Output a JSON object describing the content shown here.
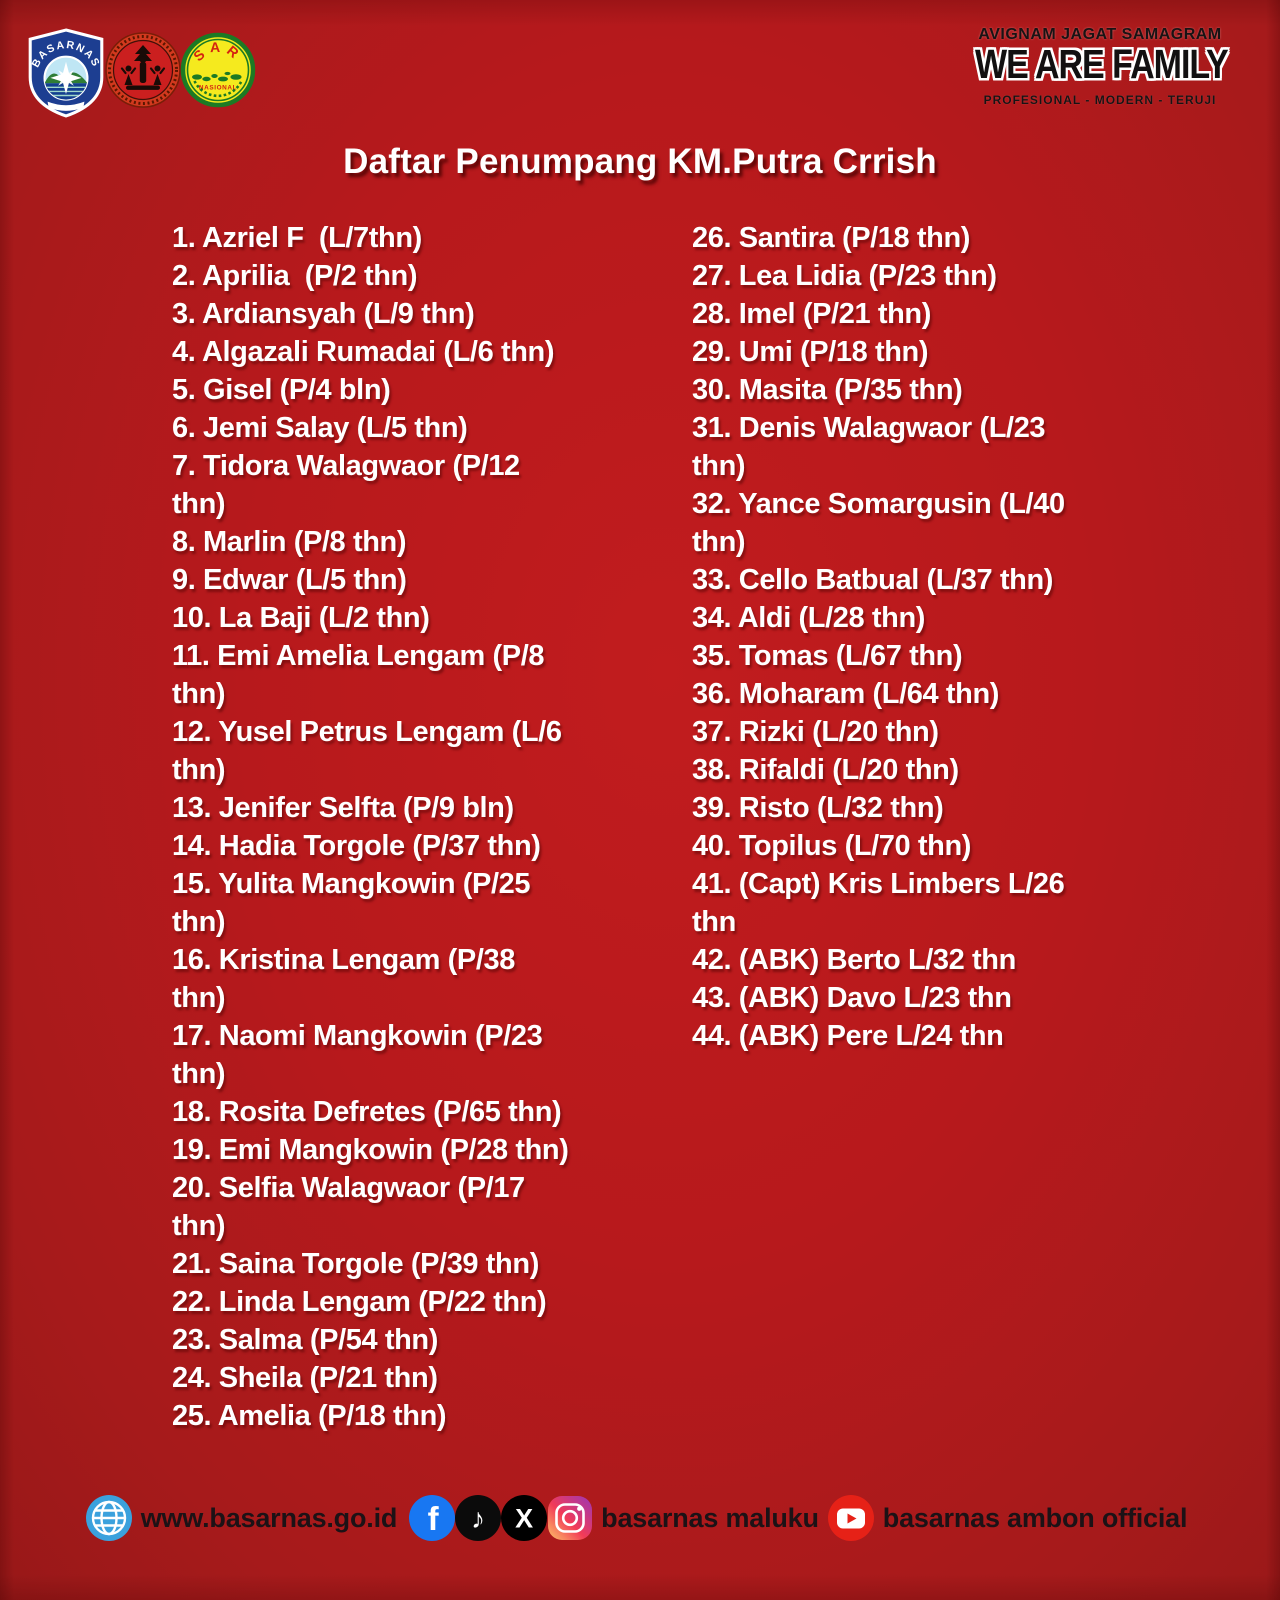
{
  "title": "Daftar Penumpang KM.Putra Crrish",
  "colors": {
    "background_red": "#b7191c",
    "edge_red": "#981818",
    "text_white": "#ffffff",
    "motto_dark": "#181314",
    "facebook_blue": "#1877f2",
    "globe_blue": "#3ba1dd",
    "youtube_red": "#e62117",
    "sar_yellow": "#f5ea1e",
    "sar_green": "#1c7a24",
    "shield_blue": "#1d3e91"
  },
  "header": {
    "logos": {
      "shield_text": "BASARNAS",
      "sar_text": "SAR",
      "sar_subtext": "NASIONAL"
    },
    "motto_line1": "AVIGNAM JAGAT SAMAGRAM",
    "motto_line2": "WE ARE FAMILY",
    "motto_line3": "PROFESIONAL - MODERN - TERUJI"
  },
  "passenger_list": {
    "left_column": [
      "1. Azriel F  (L/7thn)",
      "2. Aprilia  (P/2 thn)",
      "3. Ardiansyah (L/9 thn)",
      "4. Algazali Rumadai (L/6 thn)",
      "5. Gisel (P/4 bln)",
      "6. Jemi Salay (L/5 thn)",
      "7. Tidora Walagwaor (P/12\nthn)",
      "8. Marlin (P/8 thn)",
      "9. Edwar (L/5 thn)",
      "10. La Baji (L/2 thn)",
      "11. Emi Amelia Lengam (P/8\nthn)",
      "12. Yusel Petrus Lengam (L/6\nthn)",
      "13. Jenifer Selfta (P/9 bln)",
      "14. Hadia Torgole (P/37 thn)",
      "15. Yulita Mangkowin (P/25\nthn)",
      "16. Kristina Lengam (P/38\nthn)",
      "17. Naomi Mangkowin (P/23\nthn)",
      "18. Rosita Defretes (P/65 thn)",
      "19. Emi Mangkowin (P/28 thn)",
      "20. Selfia Walagwaor (P/17\nthn)",
      "21. Saina Torgole (P/39 thn)",
      "22. Linda Lengam (P/22 thn)",
      "23. Salma (P/54 thn)",
      "24. Sheila (P/21 thn)",
      "25. Amelia (P/18 thn)"
    ],
    "right_column": [
      "26. Santira (P/18 thn)",
      "27. Lea Lidia (P/23 thn)",
      "28. Imel (P/21 thn)",
      "29. Umi (P/18 thn)",
      "30. Masita (P/35 thn)",
      "31. Denis Walagwaor (L/23\nthn)",
      "32. Yance Somargusin (L/40\nthn)",
      "33. Cello Batbual (L/37 thn)",
      "34. Aldi (L/28 thn)",
      "35. Tomas (L/67 thn)",
      "36. Moharam (L/64 thn)",
      "37. Rizki (L/20 thn)",
      "38. Rifaldi (L/20 thn)",
      "39. Risto (L/32 thn)",
      "40. Topilus (L/70 thn)",
      "41. (Capt) Kris Limbers L/26\nthn",
      "42. (ABK) Berto L/32 thn",
      "43. (ABK) Davo L/23 thn",
      "44. (ABK) Pere L/24 thn"
    ]
  },
  "footer": {
    "website": "www.basarnas.go.id",
    "instagram_handle": "basarnas maluku",
    "youtube_handle": "basarnas ambon official",
    "icons": [
      "globe-icon",
      "facebook-icon",
      "tiktok-icon",
      "x-icon",
      "instagram-icon",
      "youtube-icon"
    ],
    "tiktok_glyph": "♪",
    "x_glyph": "X",
    "facebook_glyph": "f"
  }
}
